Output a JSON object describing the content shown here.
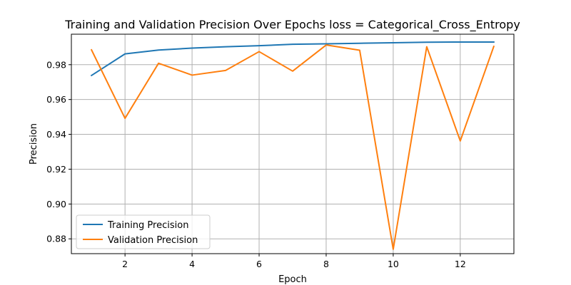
{
  "chart_data": {
    "type": "line",
    "title": "Training and Validation Precision Over Epochs loss = Categorical_Cross_Entropy",
    "xlabel": "Epoch",
    "ylabel": "Precision",
    "xlim": [
      0.4,
      13.6
    ],
    "ylim": [
      0.8715,
      0.9975
    ],
    "xticks": [
      2,
      4,
      6,
      8,
      10,
      12
    ],
    "yticks": [
      0.88,
      0.9,
      0.92,
      0.94,
      0.96,
      0.98
    ],
    "ytick_labels": [
      "0.88",
      "0.90",
      "0.92",
      "0.94",
      "0.96",
      "0.98"
    ],
    "grid": true,
    "legend_position": "lower-left",
    "x": [
      1,
      2,
      3,
      4,
      5,
      6,
      7,
      8,
      9,
      10,
      11,
      12,
      13
    ],
    "series": [
      {
        "name": "Training Precision",
        "color": "#1f77b4",
        "values": [
          0.9738,
          0.9862,
          0.9884,
          0.9895,
          0.9903,
          0.9909,
          0.9917,
          0.992,
          0.9923,
          0.9926,
          0.9929,
          0.993,
          0.993
        ]
      },
      {
        "name": "Validation Precision",
        "color": "#ff7f0e",
        "values": [
          0.9885,
          0.9492,
          0.9808,
          0.974,
          0.9767,
          0.9875,
          0.9763,
          0.9913,
          0.9883,
          0.874,
          0.9903,
          0.9362,
          0.9905
        ]
      }
    ]
  }
}
